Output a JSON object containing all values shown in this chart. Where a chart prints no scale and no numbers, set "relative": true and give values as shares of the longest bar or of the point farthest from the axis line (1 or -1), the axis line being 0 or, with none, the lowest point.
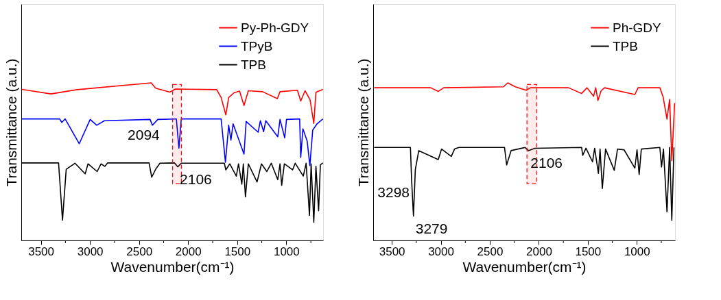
{
  "chart_data": [
    {
      "type": "line",
      "relative": true,
      "xlabel": "Wavenumber(cm⁻¹)",
      "ylabel": "Transmittance (a.u.)",
      "xlim": [
        3700,
        625
      ],
      "xticks": [
        3500,
        {
          "value": 3250,
          "label": null
        },
        3000,
        {
          "value": 2750,
          "label": null
        },
        2500,
        {
          "value": 2250,
          "label": null
        },
        2000,
        {
          "value": 1750,
          "label": null
        },
        1500,
        {
          "value": 1250,
          "label": null
        },
        1000,
        {
          "value": 750,
          "label": null
        }
      ],
      "tick_labels": "x",
      "legend": "top right",
      "grid": false,
      "marker": "none",
      "line_style": "solid",
      "bands": [
        {
          "axis": "x",
          "from": 2158,
          "to": 2069,
          "color": "#ff0000"
        }
      ],
      "annotations": [
        {
          "text": "2094",
          "x": 2094,
          "y": 0.585
        },
        {
          "text": "2106",
          "x": 2106,
          "y": 0.467
        }
      ],
      "series": [
        {
          "name": "Py-Ph-GDY",
          "color": "#ff0000",
          "x": [
            3693,
            3398,
            3131,
            2376,
            2331,
            2187,
            2131,
            1709,
            1664,
            1616,
            1587,
            1531,
            1476,
            1431,
            1387,
            1242,
            1091,
            1064,
            887,
            853,
            809,
            758,
            720,
            698,
            627
          ],
          "values": [
            0.959,
            0.93,
            0.957,
            1.0,
            0.966,
            0.941,
            0.961,
            0.957,
            0.907,
            0.797,
            0.907,
            0.938,
            0.948,
            0.856,
            0.95,
            0.944,
            0.9,
            0.944,
            0.953,
            0.885,
            0.95,
            0.893,
            0.743,
            0.94,
            0.959
          ]
        },
        {
          "name": "TPyB",
          "color": "#0000ff",
          "x": [
            3693,
            3309,
            3287,
            3253,
            3109,
            2998,
            2931,
            2853,
            2387,
            2364,
            2309,
            2120,
            2094,
            2070,
            1664,
            1620,
            1587,
            1564,
            1542,
            1431,
            1409,
            1287,
            1264,
            1231,
            1209,
            1087,
            1064,
            1016,
            998,
            864,
            853,
            831,
            809,
            787,
            760,
            731,
            687,
            627
          ],
          "values": [
            0.771,
            0.771,
            0.749,
            0.771,
            0.614,
            0.768,
            0.731,
            0.76,
            0.768,
            0.731,
            0.768,
            0.771,
            0.585,
            0.771,
            0.771,
            0.496,
            0.731,
            0.636,
            0.74,
            0.548,
            0.755,
            0.687,
            0.76,
            0.69,
            0.76,
            0.658,
            0.768,
            0.651,
            0.768,
            0.771,
            0.526,
            0.709,
            0.67,
            0.629,
            0.474,
            0.7,
            0.74,
            0.771
          ]
        },
        {
          "name": "TPB",
          "color": "#000000",
          "x": [
            3693,
            3320,
            3280,
            3242,
            3153,
            3049,
            3020,
            2927,
            2887,
            2849,
            2820,
            2398,
            2371,
            2331,
            2287,
            2140,
            2106,
            2070,
            1631,
            1616,
            1576,
            1509,
            1487,
            1453,
            1438,
            1416,
            1387,
            1298,
            1253,
            1198,
            1153,
            1087,
            1064,
            1047,
            1020,
            936,
            909,
            827,
            798,
            764,
            747,
            720,
            698,
            671,
            653,
            627
          ],
          "values": [
            0.492,
            0.492,
            0.129,
            0.452,
            0.49,
            0.423,
            0.486,
            0.437,
            0.486,
            0.47,
            0.492,
            0.492,
            0.401,
            0.452,
            0.49,
            0.492,
            0.467,
            0.49,
            0.49,
            0.448,
            0.486,
            0.408,
            0.486,
            0.357,
            0.486,
            0.276,
            0.486,
            0.371,
            0.486,
            0.437,
            0.49,
            0.386,
            0.486,
            0.349,
            0.486,
            0.448,
            0.49,
            0.408,
            0.49,
            0.159,
            0.486,
            0.115,
            0.47,
            0.188,
            0.48,
            0.492
          ]
        }
      ]
    },
    {
      "type": "line",
      "relative": true,
      "xlabel": "Wavenumber(cm⁻¹)",
      "ylabel": "Transmittance (a.u.)",
      "xlim": [
        3690,
        610
      ],
      "xticks": [
        3500,
        {
          "value": 3250,
          "label": null
        },
        3000,
        {
          "value": 2750,
          "label": null
        },
        2500,
        {
          "value": 2250,
          "label": null
        },
        2000,
        {
          "value": 1750,
          "label": null
        },
        1500,
        {
          "value": 1250,
          "label": null
        },
        1000,
        {
          "value": 750,
          "label": null
        }
      ],
      "tick_labels": "x",
      "legend": "top right",
      "grid": false,
      "marker": "none",
      "line_style": "solid",
      "bands": [
        {
          "axis": "x",
          "from": 2121,
          "to": 2022,
          "color": "#ff0000"
        }
      ],
      "annotations": [
        {
          "text": "3298",
          "x": 3298,
          "y": 0.384
        },
        {
          "text": "3279",
          "x": 3279,
          "y": 0.154
        },
        {
          "text": "2106",
          "x": 2106,
          "y": 0.57
        }
      ],
      "series": [
        {
          "name": "Ph-GDY",
          "color": "#ff0000",
          "x": [
            3680,
            3103,
            3026,
            2970,
            2361,
            2317,
            2239,
            2128,
            2084,
            1696,
            1563,
            1508,
            1441,
            1419,
            1397,
            1364,
            1330,
            1020,
            987,
            765,
            732,
            692,
            665,
            643,
            614
          ],
          "values": [
            0.969,
            0.969,
            0.946,
            0.969,
            0.975,
            1.0,
            0.975,
            0.953,
            0.969,
            0.969,
            0.933,
            0.969,
            0.915,
            0.969,
            0.888,
            0.95,
            0.969,
            0.926,
            0.969,
            0.969,
            0.912,
            0.77,
            0.895,
            0.506,
            0.872
          ]
        },
        {
          "name": "TPB",
          "color": "#000000",
          "x": [
            3680,
            3310,
            3298,
            3279,
            3260,
            3225,
            3026,
            2992,
            2893,
            2860,
            2815,
            2350,
            2328,
            2283,
            2140,
            2106,
            2040,
            1563,
            1552,
            1519,
            1452,
            1430,
            1392,
            1375,
            1352,
            1319,
            1230,
            1197,
            1130,
            1020,
            998,
            976,
            954,
            765,
            748,
            728,
            692,
            665,
            643,
            621
          ],
          "values": [
            0.59,
            0.59,
            0.384,
            0.154,
            0.45,
            0.57,
            0.513,
            0.58,
            0.533,
            0.58,
            0.59,
            0.59,
            0.479,
            0.57,
            0.59,
            0.57,
            0.585,
            0.59,
            0.54,
            0.585,
            0.499,
            0.585,
            0.425,
            0.58,
            0.33,
            0.58,
            0.445,
            0.58,
            0.575,
            0.459,
            0.575,
            0.418,
            0.58,
            0.59,
            0.466,
            0.58,
            0.181,
            0.59,
            0.127,
            0.59
          ]
        }
      ]
    }
  ]
}
